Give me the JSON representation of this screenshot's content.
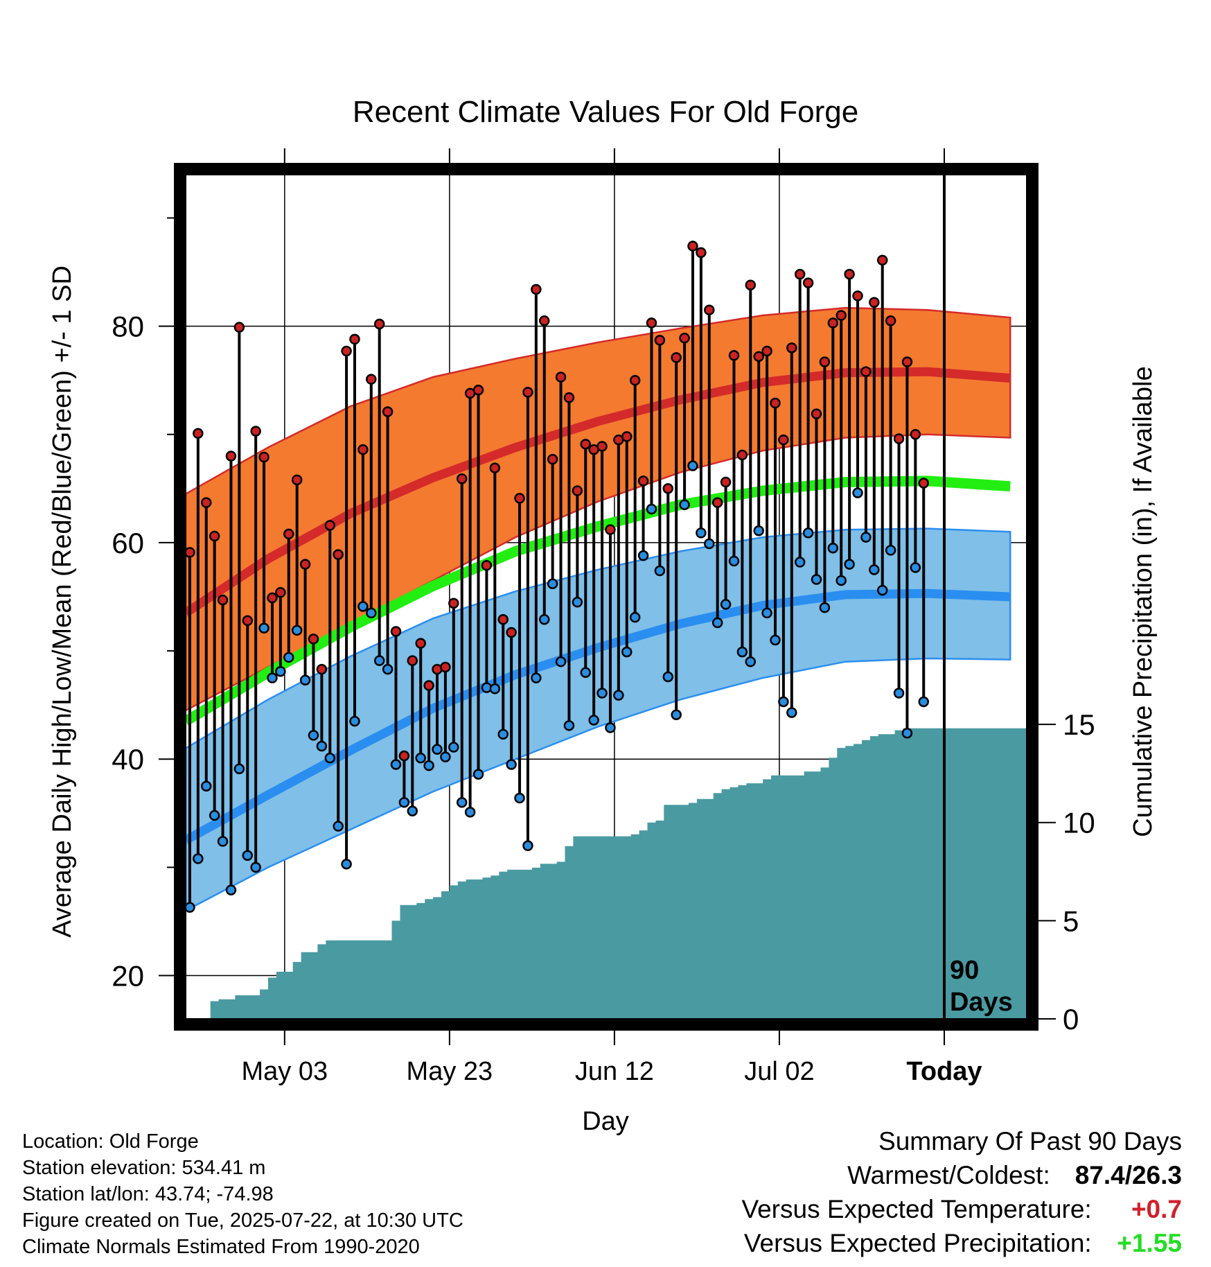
{
  "chart_data": {
    "type": "line",
    "title": "Recent Climate Values For Old Forge",
    "xlabel": "Day",
    "ylabel": "Average Daily High/Low/Mean (Red/Blue/Green) +/- 1 SD",
    "y2label": "Cumulative Precipitation (in), If Available",
    "x_tick_labels": [
      "May 03",
      "May 23",
      "Jun 12",
      "Jul 02",
      "Today"
    ],
    "x_tick_days": [
      12,
      32,
      52,
      72,
      92
    ],
    "x_range_days": [
      0,
      102
    ],
    "ylim": [
      16,
      94
    ],
    "y_ticks": [
      20,
      40,
      60,
      80
    ],
    "y2lim": [
      0,
      43
    ],
    "y2_ticks": [
      0,
      5,
      10,
      15
    ],
    "today_label": "90 Days",
    "grid": true,
    "normals": {
      "days": [
        0,
        10,
        20,
        30,
        40,
        50,
        60,
        70,
        80,
        90,
        100
      ],
      "high_mean": [
        53.5,
        58.5,
        62.7,
        66.0,
        68.8,
        71.2,
        73.2,
        74.8,
        75.7,
        75.8,
        75.2
      ],
      "high_upper": [
        64.5,
        68.8,
        72.6,
        75.3,
        77.0,
        78.5,
        79.8,
        81.0,
        81.7,
        81.5,
        80.8
      ],
      "high_lower": [
        44.5,
        48.5,
        52.5,
        56.5,
        60.5,
        63.8,
        66.5,
        68.5,
        69.7,
        70.0,
        69.7
      ],
      "mean": [
        43.5,
        48.0,
        52.2,
        56.0,
        59.2,
        61.5,
        63.5,
        64.8,
        65.6,
        65.7,
        65.2
      ],
      "low_mean": [
        32.5,
        36.7,
        40.8,
        44.7,
        47.8,
        50.3,
        52.5,
        54.2,
        55.2,
        55.3,
        55.0
      ],
      "low_upper": [
        41.0,
        45.5,
        49.5,
        53.0,
        55.5,
        57.5,
        59.2,
        60.5,
        61.2,
        61.3,
        61.0
      ],
      "low_lower": [
        26.0,
        30.0,
        33.5,
        37.0,
        40.0,
        43.0,
        45.5,
        47.5,
        49.0,
        49.3,
        49.2
      ]
    },
    "series": [
      {
        "name": "High",
        "values": [
          59.1,
          70.1,
          63.7,
          60.6,
          54.7,
          68.0,
          79.9,
          52.8,
          70.3,
          67.9,
          54.9,
          55.4,
          60.8,
          65.8,
          58.0,
          51.1,
          48.3,
          61.6,
          58.9,
          77.7,
          78.8,
          68.6,
          75.1,
          80.2,
          72.1,
          51.8,
          40.3,
          49.1,
          50.7,
          46.8,
          48.3,
          48.5,
          54.4,
          65.9,
          73.8,
          74.1,
          57.9,
          66.9,
          52.9,
          51.7,
          64.1,
          73.9,
          83.4,
          80.5,
          67.7,
          75.3,
          73.4,
          64.8,
          69.1,
          68.6,
          68.9,
          61.2,
          69.5,
          69.8,
          75.0,
          65.7,
          80.3,
          78.7,
          65.0,
          77.1,
          78.9,
          87.4,
          86.8,
          81.5,
          63.7,
          65.6,
          77.3,
          68.1,
          83.8,
          77.2,
          77.7,
          72.9,
          69.5,
          78.0,
          84.8,
          84.0,
          71.9,
          76.7,
          80.3,
          81.0,
          84.8,
          82.8,
          75.8,
          82.2,
          86.1,
          80.5,
          69.6,
          76.7,
          70.0,
          65.5
        ]
      },
      {
        "name": "Low",
        "values": [
          26.3,
          30.8,
          37.5,
          34.8,
          32.4,
          27.9,
          39.1,
          31.1,
          30.0,
          52.1,
          47.5,
          48.1,
          49.4,
          51.9,
          47.3,
          42.2,
          41.2,
          40.1,
          33.8,
          30.3,
          43.5,
          54.1,
          53.5,
          49.1,
          48.3,
          39.5,
          36.0,
          35.2,
          40.1,
          39.4,
          40.9,
          40.2,
          41.1,
          36.0,
          35.1,
          38.6,
          46.6,
          46.5,
          42.3,
          39.5,
          36.4,
          32.0,
          47.5,
          52.9,
          56.2,
          49.0,
          43.1,
          54.5,
          48.0,
          43.6,
          46.1,
          42.9,
          45.9,
          49.9,
          53.1,
          58.8,
          63.1,
          57.4,
          47.6,
          44.1,
          63.5,
          67.1,
          60.9,
          59.9,
          52.6,
          54.3,
          58.3,
          49.9,
          49.0,
          61.1,
          53.5,
          51.0,
          45.3,
          44.3,
          58.2,
          60.9,
          56.6,
          54.0,
          59.5,
          56.5,
          58.0,
          64.6,
          60.5,
          57.5,
          55.6,
          59.3,
          46.1,
          42.4,
          57.7,
          45.3
        ]
      },
      {
        "name": "Cumulative Precipitation",
        "values": [
          0.0,
          0.0,
          0.0,
          0.9,
          1.0,
          1.0,
          1.2,
          1.2,
          1.2,
          1.5,
          2.1,
          2.4,
          2.4,
          2.9,
          3.4,
          3.4,
          3.8,
          4.0,
          4.0,
          4.0,
          4.0,
          4.0,
          4.0,
          4.0,
          4.0,
          5.0,
          5.8,
          5.8,
          5.9,
          6.1,
          6.2,
          6.5,
          6.8,
          7.0,
          7.1,
          7.1,
          7.2,
          7.3,
          7.5,
          7.6,
          7.6,
          7.6,
          7.7,
          7.9,
          7.9,
          8.0,
          8.8,
          9.3,
          9.3,
          9.3,
          9.3,
          9.3,
          9.3,
          9.3,
          9.4,
          9.6,
          10.0,
          10.1,
          10.9,
          10.9,
          10.9,
          11.0,
          11.2,
          11.2,
          11.5,
          11.7,
          11.8,
          11.9,
          12.0,
          12.0,
          12.2,
          12.4,
          12.4,
          12.4,
          12.4,
          12.6,
          12.6,
          12.8,
          13.3,
          13.8,
          13.9,
          14.0,
          14.2,
          14.4,
          14.5,
          14.5,
          14.7,
          14.8,
          14.8,
          14.8
        ]
      }
    ]
  },
  "footer": {
    "location": "Location: Old Forge",
    "elevation": "Station elevation: 534.41 m",
    "latlon": "Station lat/lon: 43.74; -74.98",
    "created": "Figure created on Tue, 2025-07-22, at 10:30 UTC",
    "normals": "Climate Normals Estimated From 1990-2020"
  },
  "summary": {
    "heading": "Summary Of Past 90 Days",
    "warmest_label": "Warmest/Coldest:",
    "warmest_value": "87.4/26.3",
    "temp_label": "Versus Expected Temperature:",
    "temp_value": "+0.7",
    "precip_label": "Versus Expected Precipitation:",
    "precip_value": "+1.55",
    "temp_color": "#d0202a",
    "precip_color": "#22dd22"
  },
  "colors": {
    "high_band": "#f47a30",
    "high_line": "#d42a2a",
    "mean_line": "#22ee11",
    "low_band": "#7fbfe8",
    "low_line": "#2a8ef0",
    "precip_fill": "#4a9aa2",
    "high_dot": "#cc2222",
    "low_dot": "#2a8ee0"
  }
}
